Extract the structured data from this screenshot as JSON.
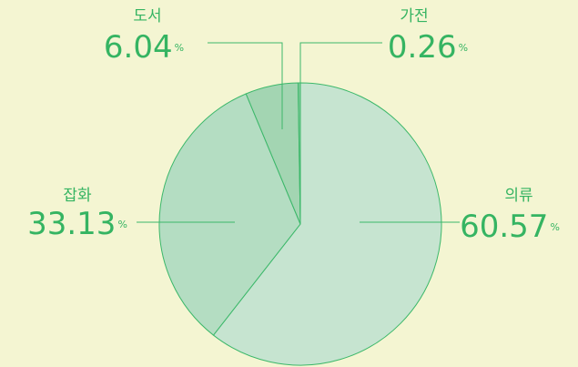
{
  "chart_data": {
    "type": "pie",
    "categories": [
      "의류",
      "잡화",
      "도서",
      "가전"
    ],
    "values": [
      60.57,
      33.13,
      6.04,
      0.26
    ],
    "unit": "%",
    "colors": [
      "#c6e4d0",
      "#b4ddc2",
      "#a3d5b2",
      "#86cb9d"
    ],
    "start_angle": 0,
    "direction": "clockwise"
  }
}
